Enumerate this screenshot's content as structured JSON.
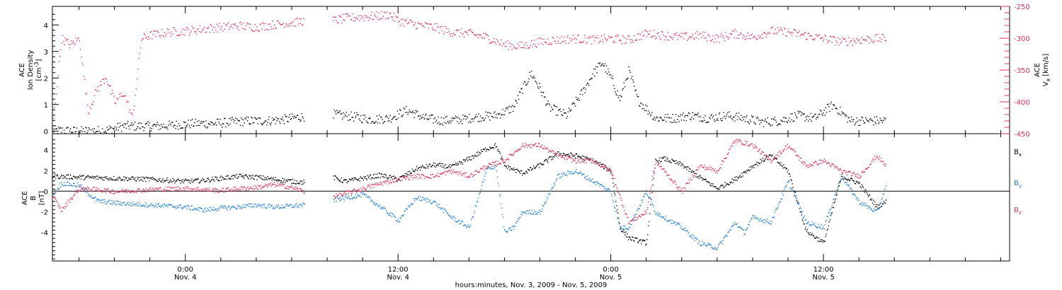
{
  "figure": {
    "xlabel": "hours:minutes, Nov.  3, 2009 - Nov.  5, 2009",
    "x_ticks": [
      {
        "hour": 24,
        "time": "0:00",
        "date": "Nov. 4"
      },
      {
        "hour": 36,
        "time": "12:00",
        "date": "Nov. 4"
      },
      {
        "hour": 48,
        "time": "0:00",
        "date": "Nov. 5"
      },
      {
        "hour": 60,
        "time": "12:00",
        "date": "Nov. 5"
      }
    ],
    "top_left_ylabel": [
      "ACE",
      "Ion Density",
      "[cm",
      "-3",
      "]"
    ],
    "top_right_ylabel": [
      "ACE",
      "V",
      "x",
      "[km/s]"
    ],
    "bottom_ylabel": [
      "ACE",
      "B",
      "[nT]"
    ],
    "legend": [
      {
        "base": "B",
        "sub": "x",
        "color": "#000000"
      },
      {
        "base": "B",
        "sub": "y",
        "color": "#1f7fd6"
      },
      {
        "base": "B",
        "sub": "z",
        "color": "#e0305a"
      }
    ]
  },
  "colors": {
    "density": "#000000",
    "vx": "#e0305a",
    "bx": "#000000",
    "by": "#1f7fd6",
    "bz": "#e0305a"
  },
  "chart_data": [
    {
      "type": "scatter",
      "xunit": "hours since Nov. 3 0:00",
      "xlim": [
        16.5,
        70.5
      ],
      "ylim": [
        -0.1,
        4.7
      ],
      "y_ticks": [
        0,
        1,
        2,
        3,
        4
      ],
      "y2lim": [
        -450,
        -250
      ],
      "y2_ticks": [
        -450,
        -400,
        -350,
        -300,
        -250
      ],
      "data_gap": [
        30.7,
        32.3
      ],
      "series": [
        {
          "axis": "left",
          "x": [
            16.5,
            17.5,
            18.5,
            19.5,
            20.5,
            21.5,
            22.5,
            23.5,
            24.5,
            25.5,
            26.5,
            27.5,
            28.5,
            29.5,
            30.5,
            32.3,
            33.5,
            34.5,
            35.5,
            36.5,
            37.5,
            38.5,
            39.5,
            40.5,
            41.5,
            42.5,
            43,
            43.5,
            44,
            44.5,
            45.5,
            46.5,
            47,
            47.5,
            48,
            48.5,
            49,
            49.5,
            50.5,
            51.5,
            52.5,
            53.5,
            54.5,
            55.5,
            56.5,
            57.5,
            58.5,
            59.5,
            60.5,
            61.5,
            62.5,
            63.5
          ],
          "values": [
            0.05,
            0.02,
            0.02,
            0.05,
            0.2,
            0.2,
            0.2,
            0.25,
            0.3,
            0.3,
            0.35,
            0.4,
            0.4,
            0.45,
            0.55,
            0.65,
            0.55,
            0.45,
            0.5,
            0.8,
            0.5,
            0.4,
            0.45,
            0.55,
            0.6,
            0.9,
            1.6,
            2.2,
            1.6,
            0.9,
            0.6,
            1.6,
            2.2,
            2.6,
            2.0,
            1.2,
            2.3,
            1.2,
            0.5,
            0.5,
            0.6,
            0.5,
            0.6,
            0.5,
            0.35,
            0.4,
            0.6,
            0.5,
            1.0,
            0.4,
            0.4,
            0.4
          ]
        },
        {
          "axis": "right",
          "x": [
            16.5,
            17,
            17.5,
            18,
            18.5,
            19,
            19.5,
            20,
            20.5,
            21,
            21.5,
            22,
            23,
            24,
            25,
            26,
            27,
            28,
            29,
            30,
            30.7,
            32.3,
            33,
            34,
            35,
            35.5,
            36,
            37,
            38,
            39,
            40,
            41,
            42,
            43,
            44,
            45,
            46,
            47,
            48,
            49,
            50,
            51,
            52,
            53,
            54,
            55,
            56,
            57,
            58,
            59,
            60,
            61,
            62,
            63,
            63.5
          ],
          "values": [
            -440,
            -300,
            -310,
            -300,
            -415,
            -380,
            -360,
            -400,
            -385,
            -425,
            -300,
            -295,
            -290,
            -288,
            -285,
            -282,
            -280,
            -282,
            -278,
            -275,
            -272,
            -272,
            -268,
            -266,
            -264,
            -262,
            -272,
            -278,
            -282,
            -290,
            -292,
            -298,
            -310,
            -312,
            -305,
            -302,
            -300,
            -302,
            -300,
            -302,
            -292,
            -295,
            -298,
            -295,
            -300,
            -292,
            -298,
            -288,
            -290,
            -295,
            -300,
            -305,
            -302,
            -300,
            -300
          ]
        }
      ]
    },
    {
      "type": "scatter",
      "xunit": "hours since Nov. 3 0:00",
      "xlim": [
        16.5,
        70.5
      ],
      "ylim": [
        -6.8,
        5.6
      ],
      "y_ticks": [
        -4,
        -2,
        0,
        2,
        4
      ],
      "data_gap": [
        30.7,
        32.3
      ],
      "series": [
        {
          "name": "Bx",
          "x": [
            16.5,
            18,
            20,
            22,
            24,
            25,
            26,
            27,
            28,
            29,
            30,
            30.7,
            32.3,
            33,
            34,
            35,
            36,
            37,
            38,
            39,
            40,
            41,
            41.5,
            42,
            43,
            44,
            45,
            46,
            47,
            47.5,
            48,
            48.5,
            49,
            50,
            50.5,
            51,
            52,
            53,
            54,
            55,
            56,
            57,
            58,
            59,
            60,
            61,
            62,
            63,
            63.5
          ],
          "values": [
            1.5,
            1.4,
            1.3,
            1.2,
            1.0,
            1.1,
            1.3,
            1.5,
            1.4,
            1.2,
            1.0,
            0.9,
            1.4,
            1.0,
            1.3,
            1.6,
            1.2,
            2.2,
            2.6,
            2.4,
            3.2,
            4.2,
            4.5,
            2.5,
            1.8,
            2.6,
            3.7,
            3.5,
            3.0,
            2.5,
            2.0,
            -3.5,
            -4.5,
            -5.0,
            3.0,
            3.2,
            2.6,
            1.4,
            0.3,
            1.2,
            2.5,
            3.5,
            2.0,
            -3.8,
            -5.0,
            1.5,
            0.8,
            -1.5,
            -1.0
          ]
        },
        {
          "name": "By",
          "x": [
            16.5,
            17,
            18,
            19,
            20,
            22,
            24,
            25,
            26,
            27,
            28,
            29,
            30,
            30.7,
            32.3,
            33,
            34,
            35,
            36,
            37,
            38,
            39,
            40,
            41,
            41.5,
            42,
            42.5,
            43,
            44,
            45,
            46,
            47,
            48,
            48.5,
            49,
            50,
            50.5,
            51,
            52,
            53,
            54,
            55,
            55.5,
            56,
            57,
            58,
            59,
            60,
            61,
            62,
            63,
            63.5
          ],
          "values": [
            -0.3,
            0.8,
            0.6,
            -0.9,
            -1.1,
            -1.3,
            -1.5,
            -1.8,
            -1.6,
            -1.5,
            -1.3,
            -1.5,
            -1.4,
            -1.3,
            -0.8,
            -0.6,
            -0.3,
            -1.5,
            -2.8,
            -0.6,
            -1.0,
            -2.5,
            -3.5,
            2.2,
            2.5,
            -4.0,
            -3.5,
            -2.0,
            -2.0,
            1.5,
            2.0,
            1.0,
            0.0,
            -3.5,
            -3.5,
            0.0,
            -2.0,
            -2.5,
            -3.5,
            -5.0,
            -5.5,
            -3.0,
            -4.0,
            -2.5,
            -3.0,
            1.0,
            -3.0,
            -3.5,
            1.5,
            -1.0,
            -2.0,
            0.5
          ]
        },
        {
          "name": "Bz",
          "x": [
            16.5,
            17,
            18,
            19,
            20,
            22,
            24,
            25,
            26,
            27,
            28,
            29,
            30,
            30.7,
            32.3,
            33,
            34,
            35,
            36,
            37,
            38,
            39,
            40,
            41,
            42,
            43,
            44,
            45,
            46,
            47,
            48,
            49,
            50,
            50.5,
            51,
            52,
            53,
            54,
            55,
            56,
            57,
            58,
            59,
            60,
            61,
            62,
            63,
            63.5
          ],
          "values": [
            -0.5,
            -1.8,
            0.3,
            0.2,
            0.0,
            0.2,
            0.3,
            0.2,
            0.1,
            0.3,
            0.4,
            0.7,
            0.4,
            0.0,
            -0.5,
            -0.2,
            0.3,
            0.8,
            1.2,
            1.5,
            1.5,
            2.0,
            1.5,
            2.5,
            3.0,
            4.5,
            4.5,
            3.5,
            3.0,
            3.0,
            2.0,
            -3.0,
            -2.0,
            3.0,
            2.0,
            0.0,
            2.5,
            2.0,
            5.0,
            4.5,
            3.0,
            4.5,
            2.5,
            3.0,
            2.0,
            1.5,
            3.5,
            2.5
          ]
        }
      ]
    }
  ]
}
